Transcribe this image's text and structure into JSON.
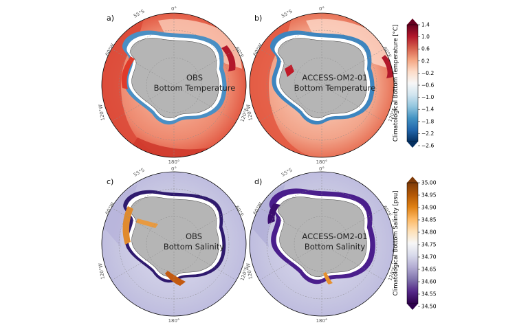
{
  "panels": [
    {
      "letter": "a)",
      "title_line1": "OBS",
      "title_line2": "Bottom Temperature",
      "variable": "temperature"
    },
    {
      "letter": "b)",
      "title_line1": "ACCESS-OM2-01",
      "title_line2": "Bottom Temperature",
      "variable": "temperature"
    },
    {
      "letter": "c)",
      "title_line1": "OBS",
      "title_line2": "Bottom Salinity",
      "variable": "salinity"
    },
    {
      "letter": "d)",
      "title_line1": "ACCESS-OM2-01",
      "title_line2": "Bottom Salinity",
      "variable": "salinity"
    }
  ],
  "geo_labels": {
    "top": "0°",
    "bottom": "180°",
    "upper_left": "55°S",
    "left_upper": "60°W",
    "left_lower": "120°W",
    "right_upper": "60°E",
    "right_lower": "120°E"
  },
  "colorbars": [
    {
      "label": "Climatological Bottom Temperature [°C]",
      "ticks": [
        "1.4",
        "1.0",
        "0.6",
        "0.2",
        "−0.2",
        "−0.6",
        "−1.0",
        "−1.4",
        "−1.8",
        "−2.2",
        "−2.6"
      ],
      "colormap": "RdBu_r",
      "colors": [
        "#67001f",
        "#b2182b",
        "#d6604d",
        "#f4a582",
        "#fddbc7",
        "#f7f7f7",
        "#d1e5f0",
        "#92c5de",
        "#4393c3",
        "#2166ac",
        "#053061"
      ]
    },
    {
      "label": "Climatological Bottom Salinity [psu]",
      "ticks": [
        "35.00",
        "34.95",
        "34.90",
        "34.85",
        "34.80",
        "34.75",
        "34.70",
        "34.65",
        "34.60",
        "34.55",
        "34.50"
      ],
      "colormap": "PuOr_r",
      "colors": [
        "#7f3b08",
        "#b35806",
        "#e08214",
        "#fdb863",
        "#fee0b6",
        "#f7f7f7",
        "#d8daeb",
        "#b2abd2",
        "#8073ac",
        "#542788",
        "#2d004b"
      ]
    }
  ],
  "colors": {
    "antarctica": "#b5b5b5",
    "ice_shelf": "#ffffff",
    "temp_open_ocean": "#f6b29b",
    "temp_warm_pacific": "#e8604a",
    "temp_cold_shelf": "#4a8fc4",
    "sal_open_ocean": "#c9c8e2",
    "sal_fresh_shelf": "#3a1a84",
    "sal_salty_shelf": "#e0852a"
  }
}
